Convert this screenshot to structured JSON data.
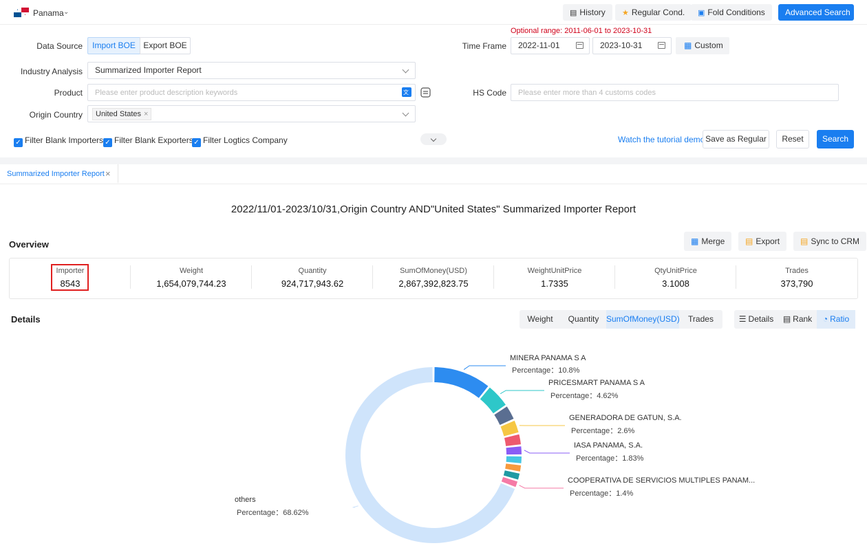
{
  "topbar": {
    "country": "Panama",
    "history": "History",
    "regular_cond": "Regular Cond.",
    "fold_conditions": "Fold Conditions",
    "advanced_search": "Advanced Search"
  },
  "form": {
    "optional_range": "Optional range:  2011-06-01 to 2023-10-31",
    "data_source_label": "Data Source",
    "import_boe": "Import BOE",
    "export_boe": "Export BOE",
    "time_frame_label": "Time Frame",
    "date_from": "2022-11-01",
    "date_to": "2023-10-31",
    "custom": "Custom",
    "industry_label": "Industry Analysis",
    "industry_value": "Summarized Importer Report",
    "product_label": "Product",
    "product_placeholder": "Please enter product description keywords",
    "hs_label": "HS Code",
    "hs_placeholder": "Please enter more than 4 customs codes",
    "origin_label": "Origin Country",
    "origin_tag": "United States",
    "filter_importers": "Filter Blank Importers",
    "filter_exporters": "Filter Blank Exporters",
    "filter_logistics": "Filter Logtics Company",
    "tutorial": "Watch the tutorial demo",
    "save_regular": "Save as Regular",
    "reset": "Reset",
    "search": "Search"
  },
  "tab": {
    "label": "Summarized Importer Report"
  },
  "report": {
    "title": "2022/11/01-2023/10/31,Origin Country AND\"United States\" Summarized Importer Report",
    "overview": "Overview",
    "merge": "Merge",
    "export": "Export",
    "sync_crm": "Sync to CRM",
    "stats": [
      {
        "key": "Importer",
        "value": "8543"
      },
      {
        "key": "Weight",
        "value": "1,654,079,744.23"
      },
      {
        "key": "Quantity",
        "value": "924,717,943.62"
      },
      {
        "key": "SumOfMoney(USD)",
        "value": "2,867,392,823.75"
      },
      {
        "key": "WeightUnitPrice",
        "value": "1.7335"
      },
      {
        "key": "QtyUnitPrice",
        "value": "3.1008"
      },
      {
        "key": "Trades",
        "value": "373,790"
      }
    ],
    "details": "Details",
    "metrics": [
      "Weight",
      "Quantity",
      "SumOfMoney(USD)",
      "Trades"
    ],
    "views": [
      "Details",
      "Rank",
      "Ratio"
    ]
  },
  "chart_data": {
    "type": "pie",
    "slices": [
      {
        "name": "MINERA PANAMA S A",
        "label": "Percentage：10.8%",
        "value": 10.8,
        "color": "#2d8cf0"
      },
      {
        "name": "PRICESMART PANAMA S A",
        "label": "Percentage：4.62%",
        "value": 4.62,
        "color": "#2ec7c9"
      },
      {
        "name": "",
        "label": "",
        "value": 2.9,
        "color": "#5a6e91"
      },
      {
        "name": "GENERADORA DE GATUN, S.A.",
        "label": "Percentage：2.6%",
        "value": 2.6,
        "color": "#f6c744"
      },
      {
        "name": "",
        "label": "",
        "value": 2.2,
        "color": "#ee5a6f"
      },
      {
        "name": "IASA PANAMA, S.A.",
        "label": "Percentage：1.83%",
        "value": 1.83,
        "color": "#8a5cf6"
      },
      {
        "name": "",
        "label": "",
        "value": 1.6,
        "color": "#46c6e3"
      },
      {
        "name": "",
        "label": "",
        "value": 1.5,
        "color": "#f79a3e"
      },
      {
        "name": "",
        "label": "",
        "value": 1.5,
        "color": "#1f9aa3"
      },
      {
        "name": "COOPERATIVA DE SERVICIOS MULTIPLES PANAM...",
        "label": "Percentage：1.4%",
        "value": 1.4,
        "color": "#f57aa6"
      },
      {
        "name": "others",
        "label": "Percentage：68.62%",
        "value": 68.62,
        "color": "#cfe4fb"
      }
    ]
  }
}
